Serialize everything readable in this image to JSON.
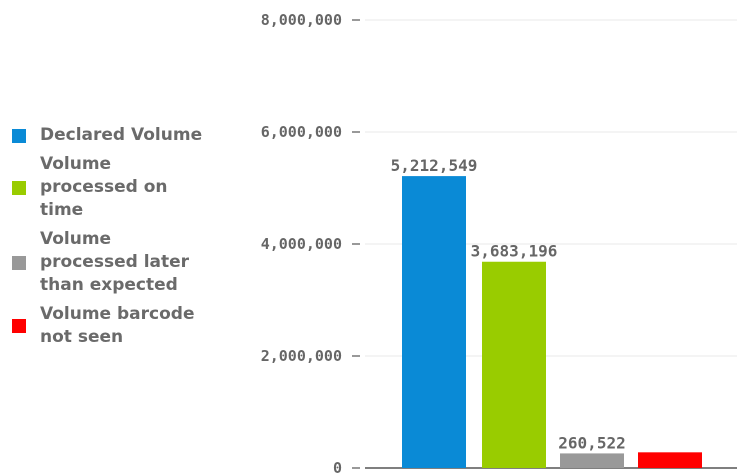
{
  "chart_data": {
    "type": "bar",
    "categories": [
      "Declared Volume",
      "Volume processed on time",
      "Volume processed later than expected",
      "Volume barcode not seen"
    ],
    "values": [
      5212549,
      3683196,
      260522,
      280000
    ],
    "data_labels": [
      "5,212,549",
      "3,683,196",
      "260,522",
      ""
    ],
    "colors": [
      "#0a8ad6",
      "#99cc00",
      "#999999",
      "#ff0000"
    ],
    "ylim": [
      0,
      8000000
    ],
    "yticks": [
      0,
      2000000,
      4000000,
      6000000,
      8000000
    ],
    "ytick_labels": [
      "0",
      "2,000,000",
      "4,000,000",
      "6,000,000",
      "8,000,000"
    ],
    "title": "",
    "xlabel": "",
    "ylabel": "",
    "grid": true,
    "legend_position": "left"
  },
  "legend": [
    {
      "label": "Declared Volume",
      "color": "#0a8ad6"
    },
    {
      "label": "Volume processed on time",
      "color": "#99cc00"
    },
    {
      "label": "Volume processed later than expected",
      "color": "#999999"
    },
    {
      "label": "Volume barcode not seen",
      "color": "#ff0000"
    }
  ]
}
